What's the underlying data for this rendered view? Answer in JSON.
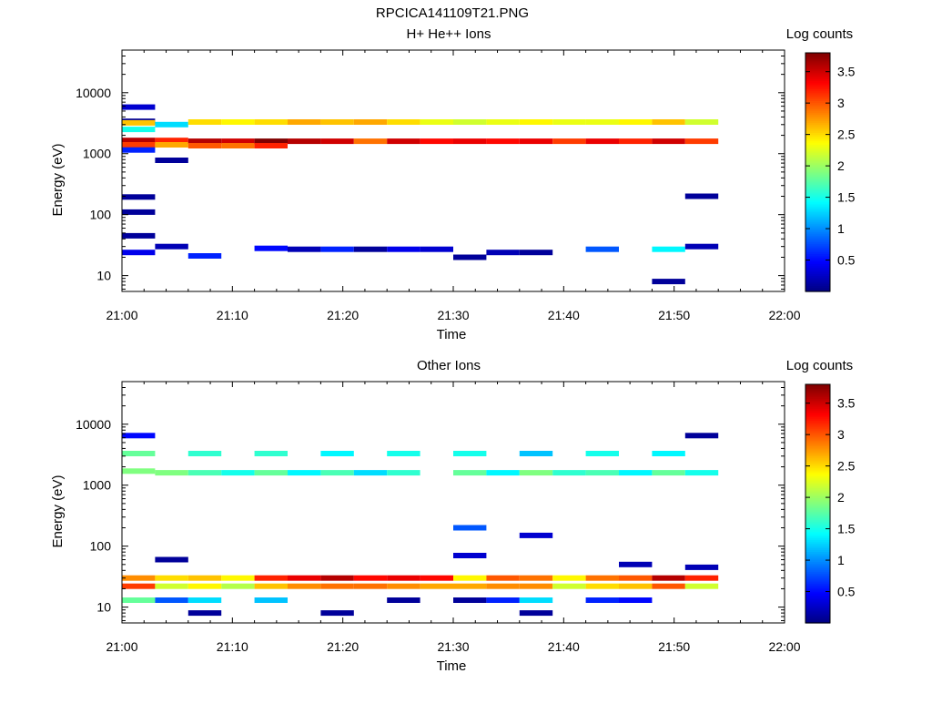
{
  "page_title": "RPCICA141109T21.PNG",
  "chart_data": [
    {
      "type": "heatmap",
      "title": "H+ He++ Ions",
      "xlabel": "Time",
      "ylabel": "Energy (eV)",
      "x_ticks": [
        "21:00",
        "21:10",
        "21:20",
        "21:30",
        "21:40",
        "21:50",
        "22:00"
      ],
      "y_ticks": [
        "10",
        "100",
        "1000",
        "10000"
      ],
      "y_scale": "log",
      "ylim": [
        5.5,
        50000
      ],
      "xlim_minutes": [
        0,
        60
      ],
      "colorbar": {
        "label": "Log counts",
        "ticks": [
          "0.5",
          "1",
          "1.5",
          "2",
          "2.5",
          "3",
          "3.5"
        ],
        "range": [
          0,
          3.8
        ]
      },
      "time_bins_minutes": [
        3,
        6,
        9,
        12,
        15,
        18,
        21,
        24,
        27,
        30,
        33,
        36,
        39,
        42,
        45,
        48,
        51,
        54,
        57,
        60
      ],
      "cells": [
        {
          "t": 3,
          "e": 3400,
          "v": 0.1
        },
        {
          "t": 3,
          "e": 5800,
          "v": 0.3
        },
        {
          "t": 3,
          "e": 3200,
          "v": 2.6
        },
        {
          "t": 3,
          "e": 2500,
          "v": 1.5
        },
        {
          "t": 3,
          "e": 1650,
          "v": 3.6
        },
        {
          "t": 3,
          "e": 1400,
          "v": 3.1
        },
        {
          "t": 3,
          "e": 1150,
          "v": 0.6
        },
        {
          "t": 3,
          "e": 195,
          "v": 0.1
        },
        {
          "t": 3,
          "e": 110,
          "v": 0.1
        },
        {
          "t": 3,
          "e": 45,
          "v": 0.1
        },
        {
          "t": 3,
          "e": 24,
          "v": 0.4
        },
        {
          "t": 6,
          "e": 3000,
          "v": 1.3
        },
        {
          "t": 6,
          "e": 1650,
          "v": 3.2
        },
        {
          "t": 6,
          "e": 1400,
          "v": 2.7
        },
        {
          "t": 6,
          "e": 780,
          "v": 0.1
        },
        {
          "t": 6,
          "e": 30,
          "v": 0.2
        },
        {
          "t": 9,
          "e": 3300,
          "v": 2.5
        },
        {
          "t": 9,
          "e": 1600,
          "v": 3.6
        },
        {
          "t": 9,
          "e": 1350,
          "v": 3.0
        },
        {
          "t": 9,
          "e": 21,
          "v": 0.6
        },
        {
          "t": 12,
          "e": 3300,
          "v": 2.4
        },
        {
          "t": 12,
          "e": 1600,
          "v": 3.5
        },
        {
          "t": 12,
          "e": 1350,
          "v": 2.9
        },
        {
          "t": 15,
          "e": 3300,
          "v": 2.5
        },
        {
          "t": 15,
          "e": 1600,
          "v": 3.8
        },
        {
          "t": 15,
          "e": 1350,
          "v": 3.2
        },
        {
          "t": 15,
          "e": 28,
          "v": 0.5
        },
        {
          "t": 18,
          "e": 3300,
          "v": 2.7
        },
        {
          "t": 18,
          "e": 1600,
          "v": 3.6
        },
        {
          "t": 18,
          "e": 27,
          "v": 0.2
        },
        {
          "t": 21,
          "e": 3300,
          "v": 2.6
        },
        {
          "t": 21,
          "e": 1600,
          "v": 3.5
        },
        {
          "t": 21,
          "e": 27,
          "v": 0.6
        },
        {
          "t": 24,
          "e": 3300,
          "v": 2.7
        },
        {
          "t": 24,
          "e": 1600,
          "v": 2.9
        },
        {
          "t": 24,
          "e": 27,
          "v": 0.1
        },
        {
          "t": 27,
          "e": 3300,
          "v": 2.5
        },
        {
          "t": 27,
          "e": 1600,
          "v": 3.5
        },
        {
          "t": 27,
          "e": 27,
          "v": 0.4
        },
        {
          "t": 30,
          "e": 3300,
          "v": 2.3
        },
        {
          "t": 30,
          "e": 1600,
          "v": 3.3
        },
        {
          "t": 30,
          "e": 27,
          "v": 0.3
        },
        {
          "t": 33,
          "e": 3300,
          "v": 2.2
        },
        {
          "t": 33,
          "e": 1600,
          "v": 3.4
        },
        {
          "t": 33,
          "e": 20,
          "v": 0.1
        },
        {
          "t": 36,
          "e": 3300,
          "v": 2.3
        },
        {
          "t": 36,
          "e": 1600,
          "v": 3.3
        },
        {
          "t": 36,
          "e": 24,
          "v": 0.2
        },
        {
          "t": 39,
          "e": 3300,
          "v": 2.4
        },
        {
          "t": 39,
          "e": 1600,
          "v": 3.4
        },
        {
          "t": 39,
          "e": 24,
          "v": 0.1
        },
        {
          "t": 42,
          "e": 3300,
          "v": 2.3
        },
        {
          "t": 42,
          "e": 1600,
          "v": 3.1
        },
        {
          "t": 45,
          "e": 3300,
          "v": 2.3
        },
        {
          "t": 45,
          "e": 1600,
          "v": 3.4
        },
        {
          "t": 45,
          "e": 27,
          "v": 0.8
        },
        {
          "t": 48,
          "e": 3300,
          "v": 2.4
        },
        {
          "t": 48,
          "e": 1600,
          "v": 3.2
        },
        {
          "t": 51,
          "e": 3300,
          "v": 2.6
        },
        {
          "t": 51,
          "e": 1600,
          "v": 3.5
        },
        {
          "t": 51,
          "e": 27,
          "v": 1.4
        },
        {
          "t": 51,
          "e": 8,
          "v": 0.1
        },
        {
          "t": 54,
          "e": 3300,
          "v": 2.2
        },
        {
          "t": 54,
          "e": 1600,
          "v": 3.1
        },
        {
          "t": 54,
          "e": 200,
          "v": 0.1
        },
        {
          "t": 54,
          "e": 30,
          "v": 0.2
        }
      ]
    },
    {
      "type": "heatmap",
      "title": "Other Ions",
      "xlabel": "Time",
      "ylabel": "Energy (eV)",
      "x_ticks": [
        "21:00",
        "21:10",
        "21:20",
        "21:30",
        "21:40",
        "21:50",
        "22:00"
      ],
      "y_ticks": [
        "10",
        "100",
        "1000",
        "10000"
      ],
      "y_scale": "log",
      "ylim": [
        5.5,
        50000
      ],
      "xlim_minutes": [
        0,
        60
      ],
      "colorbar": {
        "label": "Log counts",
        "ticks": [
          "0.5",
          "1",
          "1.5",
          "2",
          "2.5",
          "3",
          "3.5"
        ],
        "range": [
          0,
          3.8
        ]
      },
      "time_bins_minutes": [
        3,
        6,
        9,
        12,
        15,
        18,
        21,
        24,
        27,
        30,
        33,
        36,
        39,
        42,
        45,
        48,
        51,
        54,
        57,
        60
      ],
      "cells": [
        {
          "t": 3,
          "e": 6500,
          "v": 0.5
        },
        {
          "t": 3,
          "e": 3300,
          "v": 1.8
        },
        {
          "t": 3,
          "e": 1700,
          "v": 1.9
        },
        {
          "t": 3,
          "e": 30,
          "v": 2.8
        },
        {
          "t": 3,
          "e": 22,
          "v": 3.1
        },
        {
          "t": 3,
          "e": 13,
          "v": 1.8
        },
        {
          "t": 6,
          "e": 1600,
          "v": 1.9
        },
        {
          "t": 6,
          "e": 60,
          "v": 0.1
        },
        {
          "t": 6,
          "e": 30,
          "v": 2.5
        },
        {
          "t": 6,
          "e": 22,
          "v": 2.2
        },
        {
          "t": 6,
          "e": 13,
          "v": 0.8
        },
        {
          "t": 9,
          "e": 3300,
          "v": 1.6
        },
        {
          "t": 9,
          "e": 1600,
          "v": 1.7
        },
        {
          "t": 9,
          "e": 30,
          "v": 2.6
        },
        {
          "t": 9,
          "e": 22,
          "v": 2.4
        },
        {
          "t": 9,
          "e": 13,
          "v": 1.3
        },
        {
          "t": 9,
          "e": 8,
          "v": 0.1
        },
        {
          "t": 12,
          "e": 1600,
          "v": 1.5
        },
        {
          "t": 12,
          "e": 30,
          "v": 2.4
        },
        {
          "t": 12,
          "e": 22,
          "v": 2.1
        },
        {
          "t": 15,
          "e": 3300,
          "v": 1.6
        },
        {
          "t": 15,
          "e": 1600,
          "v": 1.8
        },
        {
          "t": 15,
          "e": 30,
          "v": 3.2
        },
        {
          "t": 15,
          "e": 22,
          "v": 2.6
        },
        {
          "t": 15,
          "e": 13,
          "v": 1.2
        },
        {
          "t": 18,
          "e": 1600,
          "v": 1.4
        },
        {
          "t": 18,
          "e": 30,
          "v": 3.4
        },
        {
          "t": 18,
          "e": 22,
          "v": 2.8
        },
        {
          "t": 21,
          "e": 3300,
          "v": 1.4
        },
        {
          "t": 21,
          "e": 1600,
          "v": 1.7
        },
        {
          "t": 21,
          "e": 30,
          "v": 3.6
        },
        {
          "t": 21,
          "e": 22,
          "v": 2.9
        },
        {
          "t": 21,
          "e": 8,
          "v": 0.1
        },
        {
          "t": 24,
          "e": 1600,
          "v": 1.3
        },
        {
          "t": 24,
          "e": 30,
          "v": 3.3
        },
        {
          "t": 24,
          "e": 22,
          "v": 2.9
        },
        {
          "t": 27,
          "e": 3300,
          "v": 1.5
        },
        {
          "t": 27,
          "e": 1600,
          "v": 1.6
        },
        {
          "t": 27,
          "e": 30,
          "v": 3.4
        },
        {
          "t": 27,
          "e": 22,
          "v": 2.8
        },
        {
          "t": 27,
          "e": 13,
          "v": 0.1
        },
        {
          "t": 30,
          "e": 30,
          "v": 3.3
        },
        {
          "t": 30,
          "e": 22,
          "v": 2.7
        },
        {
          "t": 33,
          "e": 3300,
          "v": 1.5
        },
        {
          "t": 33,
          "e": 1600,
          "v": 1.8
        },
        {
          "t": 33,
          "e": 200,
          "v": 0.8
        },
        {
          "t": 33,
          "e": 70,
          "v": 0.3
        },
        {
          "t": 33,
          "e": 30,
          "v": 2.4
        },
        {
          "t": 33,
          "e": 22,
          "v": 2.7
        },
        {
          "t": 33,
          "e": 13,
          "v": 0.1
        },
        {
          "t": 36,
          "e": 1600,
          "v": 1.4
        },
        {
          "t": 36,
          "e": 30,
          "v": 3.0
        },
        {
          "t": 36,
          "e": 22,
          "v": 2.8
        },
        {
          "t": 36,
          "e": 13,
          "v": 0.6
        },
        {
          "t": 39,
          "e": 3300,
          "v": 1.2
        },
        {
          "t": 39,
          "e": 1600,
          "v": 1.9
        },
        {
          "t": 39,
          "e": 150,
          "v": 0.3
        },
        {
          "t": 39,
          "e": 30,
          "v": 2.9
        },
        {
          "t": 39,
          "e": 22,
          "v": 2.8
        },
        {
          "t": 39,
          "e": 13,
          "v": 1.3
        },
        {
          "t": 39,
          "e": 8,
          "v": 0.1
        },
        {
          "t": 42,
          "e": 1600,
          "v": 1.6
        },
        {
          "t": 42,
          "e": 30,
          "v": 2.4
        },
        {
          "t": 42,
          "e": 22,
          "v": 2.2
        },
        {
          "t": 45,
          "e": 3300,
          "v": 1.5
        },
        {
          "t": 45,
          "e": 1600,
          "v": 1.7
        },
        {
          "t": 45,
          "e": 30,
          "v": 2.9
        },
        {
          "t": 45,
          "e": 22,
          "v": 2.5
        },
        {
          "t": 45,
          "e": 13,
          "v": 0.6
        },
        {
          "t": 48,
          "e": 1600,
          "v": 1.4
        },
        {
          "t": 48,
          "e": 50,
          "v": 0.2
        },
        {
          "t": 48,
          "e": 30,
          "v": 3.0
        },
        {
          "t": 48,
          "e": 22,
          "v": 2.6
        },
        {
          "t": 48,
          "e": 13,
          "v": 0.5
        },
        {
          "t": 51,
          "e": 3300,
          "v": 1.4
        },
        {
          "t": 51,
          "e": 1600,
          "v": 1.8
        },
        {
          "t": 51,
          "e": 30,
          "v": 3.6
        },
        {
          "t": 51,
          "e": 22,
          "v": 3.0
        },
        {
          "t": 54,
          "e": 6500,
          "v": 0.1
        },
        {
          "t": 54,
          "e": 1600,
          "v": 1.5
        },
        {
          "t": 54,
          "e": 45,
          "v": 0.2
        },
        {
          "t": 54,
          "e": 30,
          "v": 3.2
        },
        {
          "t": 54,
          "e": 22,
          "v": 2.2
        }
      ]
    }
  ]
}
